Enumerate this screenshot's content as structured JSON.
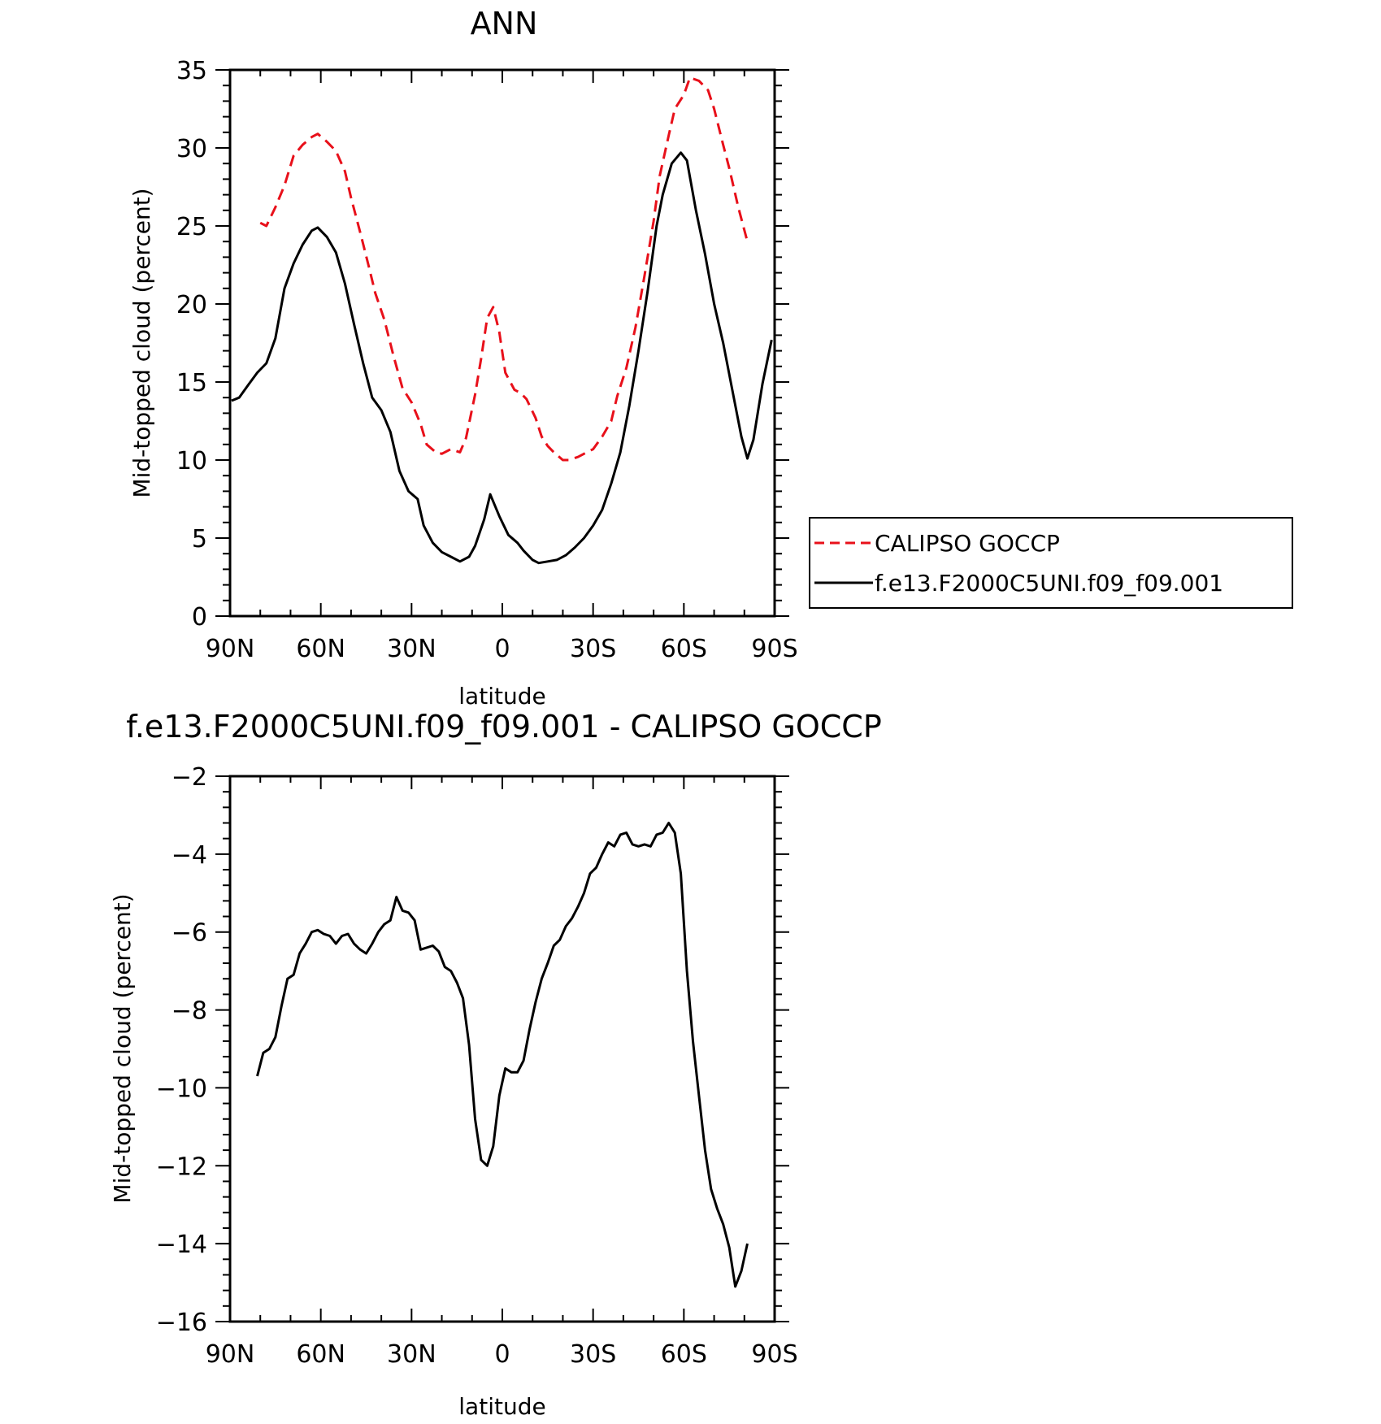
{
  "chart_data": [
    {
      "type": "line",
      "title": "ANN",
      "xlabel": "latitude",
      "ylabel": "Mid-topped cloud (percent)",
      "xlim": [
        -90,
        90
      ],
      "ylim": [
        0,
        35
      ],
      "xticks": [
        -90,
        -60,
        -30,
        0,
        30,
        60,
        90
      ],
      "xticklabels": [
        "90N",
        "60N",
        "30N",
        "0",
        "30S",
        "60S",
        "90S"
      ],
      "yticks": [
        0,
        5,
        10,
        15,
        20,
        25,
        30,
        35
      ],
      "yticklabels": [
        "0",
        "5",
        "10",
        "15",
        "20",
        "25",
        "30",
        "35"
      ],
      "grid": false,
      "legend_position": "right",
      "series": [
        {
          "name": "CALIPSO GOCCP",
          "color": "#e8101a",
          "style": "dashed",
          "x": [
            -80,
            -78,
            -75,
            -72,
            -69,
            -66,
            -63,
            -61,
            -58,
            -55,
            -52,
            -50,
            -47,
            -44,
            -42,
            -39,
            -36,
            -33,
            -30,
            -27,
            -25,
            -22,
            -20,
            -17,
            -14,
            -12,
            -9,
            -7,
            -5,
            -3,
            -1,
            1,
            4,
            6,
            8,
            11,
            13,
            15,
            17,
            20,
            22,
            25,
            28,
            30,
            33,
            36,
            38,
            41,
            44,
            47,
            50,
            52,
            55,
            57,
            60,
            62,
            65,
            68,
            70,
            73,
            75,
            78,
            81
          ],
          "y": [
            25.2,
            25.0,
            26.2,
            27.6,
            29.5,
            30.2,
            30.7,
            30.9,
            30.4,
            29.8,
            28.5,
            26.8,
            24.6,
            22.3,
            20.7,
            19.0,
            16.7,
            14.6,
            13.7,
            12.3,
            11.0,
            10.5,
            10.4,
            10.7,
            10.5,
            11.4,
            14.2,
            16.5,
            19.1,
            19.8,
            18.2,
            15.6,
            14.5,
            14.3,
            13.9,
            12.7,
            11.5,
            10.9,
            10.5,
            10.0,
            10.0,
            10.2,
            10.5,
            10.7,
            11.5,
            12.5,
            14.1,
            15.9,
            18.5,
            21.8,
            25.3,
            28.2,
            30.8,
            32.5,
            33.4,
            34.5,
            34.3,
            33.7,
            32.5,
            30.2,
            28.7,
            26.2,
            24.0
          ]
        },
        {
          "name": "f.e13.F2000C5UNI.f09_f09.001",
          "color": "#000000",
          "style": "solid",
          "x": [
            -89.5,
            -87,
            -84,
            -81,
            -78,
            -75,
            -72,
            -69,
            -66,
            -63,
            -61,
            -58,
            -55,
            -52,
            -49,
            -46,
            -43,
            -40,
            -37,
            -34,
            -31,
            -28,
            -26,
            -23,
            -20,
            -17,
            -14,
            -11,
            -9,
            -6,
            -4,
            -1,
            2,
            5,
            7,
            10,
            12,
            15,
            18,
            21,
            24,
            27,
            30,
            33,
            36,
            39,
            42,
            45,
            48,
            51,
            53,
            56,
            59,
            61,
            64,
            67,
            70,
            73,
            76,
            79,
            81,
            83,
            86,
            89
          ],
          "y": [
            13.8,
            14.0,
            14.8,
            15.6,
            16.2,
            17.8,
            21.0,
            22.6,
            23.8,
            24.7,
            24.9,
            24.3,
            23.3,
            21.3,
            18.7,
            16.2,
            14.0,
            13.2,
            11.8,
            9.3,
            8.0,
            7.5,
            5.8,
            4.7,
            4.1,
            3.8,
            3.5,
            3.8,
            4.5,
            6.2,
            7.8,
            6.4,
            5.2,
            4.7,
            4.2,
            3.6,
            3.4,
            3.5,
            3.6,
            3.9,
            4.4,
            5.0,
            5.8,
            6.8,
            8.5,
            10.5,
            13.5,
            17.0,
            20.8,
            25.0,
            27.0,
            29.0,
            29.7,
            29.2,
            26.0,
            23.2,
            20.0,
            17.5,
            14.5,
            11.5,
            10.1,
            11.3,
            14.9,
            17.7
          ]
        }
      ]
    },
    {
      "type": "line",
      "title": "f.e13.F2000C5UNI.f09_f09.001 - CALIPSO GOCCP",
      "xlabel": "latitude",
      "ylabel": "Mid-topped cloud (percent)",
      "xlim": [
        -90,
        90
      ],
      "ylim": [
        -16,
        -2
      ],
      "xticks": [
        -90,
        -60,
        -30,
        0,
        30,
        60,
        90
      ],
      "xticklabels": [
        "90N",
        "60N",
        "30N",
        "0",
        "30S",
        "60S",
        "90S"
      ],
      "yticks": [
        -16,
        -14,
        -12,
        -10,
        -8,
        -6,
        -4,
        -2
      ],
      "yticklabels": [
        "−16",
        "−14",
        "−12",
        "−10",
        "−8",
        "−6",
        "−4",
        "−2"
      ],
      "grid": false,
      "series": [
        {
          "color": "#000000",
          "style": "solid",
          "x": [
            -81,
            -79,
            -77,
            -75,
            -73,
            -71,
            -69,
            -67,
            -65,
            -63,
            -61,
            -59,
            -57,
            -55,
            -53,
            -51,
            -49,
            -47,
            -45,
            -43,
            -41,
            -39,
            -37,
            -35,
            -33,
            -31,
            -29,
            -27,
            -25,
            -23,
            -21,
            -19,
            -17,
            -15,
            -13,
            -11,
            -9,
            -7,
            -5,
            -3,
            -1,
            1,
            3,
            5,
            7,
            9,
            11,
            13,
            15,
            17,
            19,
            21,
            23,
            25,
            27,
            29,
            31,
            33,
            35,
            37,
            39,
            41,
            43,
            45,
            47,
            49,
            51,
            53,
            55,
            57,
            59,
            61,
            63,
            65,
            67,
            69,
            71,
            73,
            75,
            77,
            79,
            81
          ],
          "y": [
            -9.7,
            -9.1,
            -9.0,
            -8.7,
            -7.9,
            -7.2,
            -7.1,
            -6.55,
            -6.3,
            -6.0,
            -5.95,
            -6.05,
            -6.1,
            -6.3,
            -6.1,
            -6.05,
            -6.3,
            -6.45,
            -6.55,
            -6.3,
            -6.0,
            -5.8,
            -5.7,
            -5.1,
            -5.45,
            -5.5,
            -5.7,
            -6.45,
            -6.4,
            -6.35,
            -6.5,
            -6.9,
            -7.0,
            -7.3,
            -7.7,
            -8.9,
            -10.8,
            -11.85,
            -12.0,
            -11.5,
            -10.2,
            -9.5,
            -9.6,
            -9.6,
            -9.3,
            -8.5,
            -7.8,
            -7.2,
            -6.8,
            -6.35,
            -6.2,
            -5.85,
            -5.65,
            -5.35,
            -5.0,
            -4.5,
            -4.35,
            -4.0,
            -3.7,
            -3.8,
            -3.5,
            -3.45,
            -3.75,
            -3.8,
            -3.75,
            -3.8,
            -3.5,
            -3.45,
            -3.2,
            -3.45,
            -4.5,
            -7.0,
            -8.8,
            -10.2,
            -11.6,
            -12.6,
            -13.1,
            -13.5,
            -14.1,
            -15.1,
            -14.7,
            -14.0
          ]
        }
      ]
    }
  ]
}
